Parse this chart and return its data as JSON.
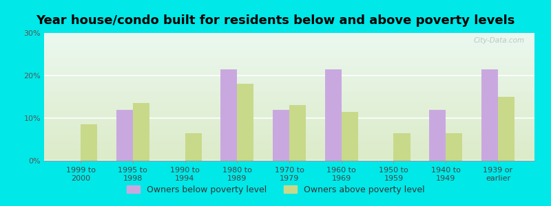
{
  "title": "Year house/condo built for residents below and above poverty levels",
  "categories": [
    "1999 to\n2000",
    "1995 to\n1998",
    "1990 to\n1994",
    "1980 to\n1989",
    "1970 to\n1979",
    "1960 to\n1969",
    "1950 to\n1959",
    "1940 to\n1949",
    "1939 or\nearlier"
  ],
  "below_poverty": [
    0,
    12,
    0,
    21.5,
    12,
    21.5,
    0,
    12,
    21.5
  ],
  "above_poverty": [
    8.5,
    13.5,
    6.5,
    18,
    13,
    11.5,
    6.5,
    6.5,
    15
  ],
  "below_color": "#c9a8e0",
  "above_color": "#c8d98a",
  "ylim": [
    0,
    30
  ],
  "yticks": [
    0,
    10,
    20,
    30
  ],
  "ytick_labels": [
    "0%",
    "10%",
    "20%",
    "30%"
  ],
  "background_color": "#00e8e8",
  "legend_below_label": "Owners below poverty level",
  "legend_above_label": "Owners above poverty level",
  "title_fontsize": 13,
  "tick_fontsize": 8,
  "legend_fontsize": 9,
  "bar_width": 0.32
}
